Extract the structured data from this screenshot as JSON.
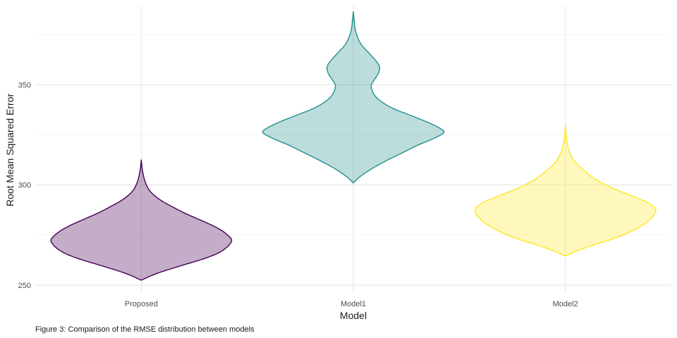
{
  "chart_data": {
    "type": "violin",
    "xlabel": "Model",
    "ylabel": "Root Mean Squared Error",
    "caption": "Figure 3: Comparison of the RMSE distribution between models",
    "categories": [
      "Proposed",
      "Model1",
      "Model2"
    ],
    "ylim": [
      246.5,
      389.5
    ],
    "yticks": [
      250,
      300,
      350
    ],
    "grid": true,
    "legend": "none",
    "series": [
      {
        "category": "Proposed",
        "color": "#440154",
        "fill_opacity": 0.32,
        "min": 252.5,
        "max": 312.5,
        "profile": [
          [
            252.5,
            0.0
          ],
          [
            256,
            0.18
          ],
          [
            260,
            0.46
          ],
          [
            263,
            0.68
          ],
          [
            266,
            0.85
          ],
          [
            269,
            0.95
          ],
          [
            272,
            1.0
          ],
          [
            274,
            0.98
          ],
          [
            277,
            0.9
          ],
          [
            280,
            0.78
          ],
          [
            283,
            0.63
          ],
          [
            286,
            0.48
          ],
          [
            289,
            0.35
          ],
          [
            292,
            0.23
          ],
          [
            295,
            0.14
          ],
          [
            298,
            0.08
          ],
          [
            302,
            0.04
          ],
          [
            306,
            0.018
          ],
          [
            309,
            0.008
          ],
          [
            312.5,
            0.0
          ]
        ]
      },
      {
        "category": "Model1",
        "color": "#21908C",
        "fill_opacity": 0.3,
        "min": 301,
        "max": 386.5,
        "profile": [
          [
            301,
            0.0
          ],
          [
            304,
            0.07
          ],
          [
            308,
            0.2
          ],
          [
            312,
            0.36
          ],
          [
            316,
            0.54
          ],
          [
            320,
            0.72
          ],
          [
            323,
            0.88
          ],
          [
            326,
            1.0
          ],
          [
            328,
            0.97
          ],
          [
            331,
            0.84
          ],
          [
            335,
            0.62
          ],
          [
            338,
            0.45
          ],
          [
            341,
            0.33
          ],
          [
            344,
            0.25
          ],
          [
            347,
            0.21
          ],
          [
            350,
            0.2
          ],
          [
            353,
            0.24
          ],
          [
            356,
            0.28
          ],
          [
            359,
            0.29
          ],
          [
            362,
            0.25
          ],
          [
            366,
            0.17
          ],
          [
            370,
            0.09
          ],
          [
            374,
            0.045
          ],
          [
            378,
            0.02
          ],
          [
            382,
            0.01
          ],
          [
            386.5,
            0.0
          ]
        ]
      },
      {
        "category": "Model2",
        "color": "#FDE725",
        "fill_opacity": 0.3,
        "min": 264.5,
        "max": 329.5,
        "profile": [
          [
            264.5,
            0.0
          ],
          [
            267,
            0.12
          ],
          [
            270,
            0.31
          ],
          [
            273,
            0.52
          ],
          [
            276,
            0.69
          ],
          [
            279,
            0.82
          ],
          [
            282,
            0.92
          ],
          [
            285,
            0.98
          ],
          [
            288,
            1.0
          ],
          [
            291,
            0.92
          ],
          [
            294,
            0.77
          ],
          [
            297,
            0.6
          ],
          [
            300,
            0.45
          ],
          [
            303,
            0.33
          ],
          [
            306,
            0.24
          ],
          [
            309,
            0.16
          ],
          [
            312,
            0.1
          ],
          [
            315,
            0.06
          ],
          [
            318,
            0.035
          ],
          [
            322,
            0.015
          ],
          [
            326,
            0.006
          ],
          [
            329.5,
            0.0
          ]
        ]
      }
    ]
  }
}
